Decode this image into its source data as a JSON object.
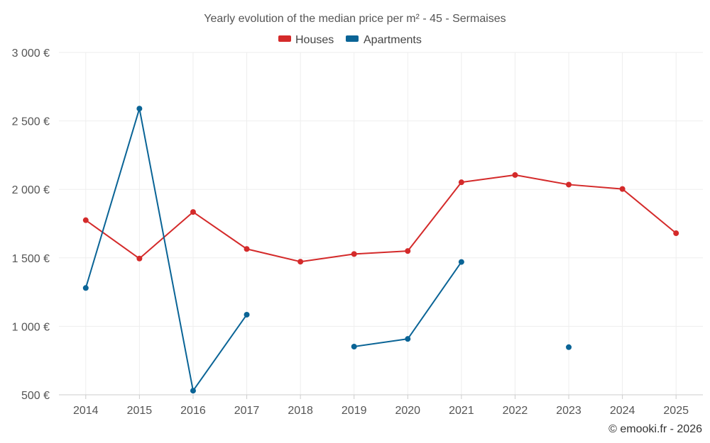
{
  "chart_data": {
    "type": "line",
    "title": "Yearly evolution of the median price per m² - 45 - Sermaises",
    "categories": [
      "2014",
      "2015",
      "2016",
      "2017",
      "2018",
      "2019",
      "2020",
      "2021",
      "2022",
      "2023",
      "2024",
      "2025"
    ],
    "series": [
      {
        "name": "Houses",
        "color": "#d42a2a",
        "values": [
          1775,
          1495,
          1835,
          1565,
          1472,
          1528,
          1550,
          2052,
          2105,
          2035,
          2003,
          1680
        ]
      },
      {
        "name": "Apartments",
        "color": "#0a6496",
        "values": [
          1280,
          2590,
          530,
          1085,
          null,
          852,
          908,
          1470,
          null,
          848,
          null,
          null
        ]
      }
    ],
    "ylim": [
      500,
      3000
    ],
    "yticks": [
      500,
      1000,
      1500,
      2000,
      2500,
      3000
    ],
    "ytick_labels": [
      "500 €",
      "1 000 €",
      "1 500 €",
      "2 000 €",
      "2 500 €",
      "3 000 €"
    ],
    "xlabel": "",
    "ylabel": "",
    "legend_position": "top-center",
    "grid": true
  },
  "credit": "© emooki.fr - 2026"
}
